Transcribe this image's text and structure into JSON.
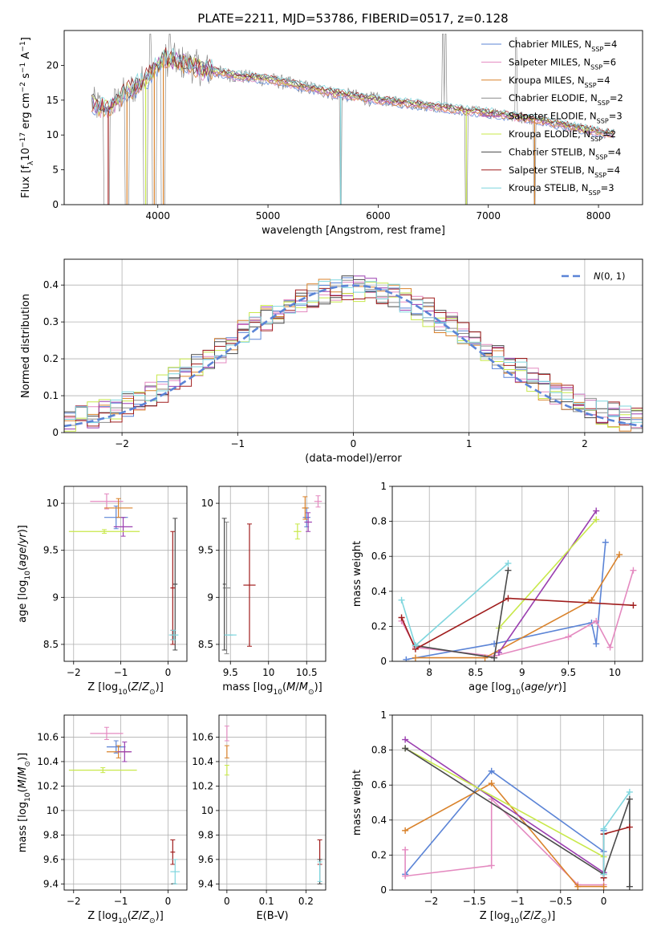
{
  "figure": {
    "title": "PLATE=2211, MJD=53786, FIBERID=0517, z=0.128"
  },
  "colors": {
    "Chabrier MILES": "#5b84d6",
    "Salpeter MILES": "#e48ac0",
    "Kroupa MILES": "#d9822b",
    "Chabrier ELODIE": "#8c8c8c",
    "Salpeter ELODIE": "#9b3fb0",
    "Kroupa ELODIE": "#c8e84a",
    "Chabrier STELIB": "#4a4a4a",
    "Salpeter STELIB": "#a01d1d",
    "Kroupa STELIB": "#7fd6de",
    "gauss": "#5b84d6"
  },
  "chart_data": [
    {
      "id": "spectrum",
      "type": "line",
      "xlabel": "wavelength [Angstrom, rest frame]",
      "ylabel": "Flux [f_λ10^-17 erg cm^-2 s^-1 A^-1]",
      "xlim": [
        3150,
        8400
      ],
      "ylim": [
        0,
        25
      ],
      "xticks": [
        4000,
        5000,
        6000,
        7000,
        8000
      ],
      "yticks": [
        0,
        5,
        10,
        15,
        20
      ],
      "grid": false,
      "legend_position": "top-right",
      "legend": [
        {
          "name": "Chabrier MILES",
          "nssp": "4"
        },
        {
          "name": "Salpeter MILES",
          "nssp": "6"
        },
        {
          "name": "Kroupa MILES",
          "nssp": "4"
        },
        {
          "name": "Chabrier ELODIE",
          "nssp": "2"
        },
        {
          "name": "Salpeter ELODIE",
          "nssp": "3"
        },
        {
          "name": "Kroupa ELODIE",
          "nssp": "2"
        },
        {
          "name": "Chabrier STELIB",
          "nssp": "4"
        },
        {
          "name": "Salpeter STELIB",
          "nssp": "4"
        },
        {
          "name": "Kroupa STELIB",
          "nssp": "3"
        }
      ],
      "continuum": [
        [
          3400,
          14.5
        ],
        [
          3550,
          13.5
        ],
        [
          3700,
          16
        ],
        [
          3900,
          18
        ],
        [
          4050,
          21
        ],
        [
          4200,
          20.5
        ],
        [
          4400,
          19.5
        ],
        [
          4700,
          18.5
        ],
        [
          5000,
          18
        ],
        [
          5300,
          17
        ],
        [
          5600,
          16
        ],
        [
          6000,
          15
        ],
        [
          6400,
          14.3
        ],
        [
          6800,
          13.5
        ],
        [
          7100,
          13
        ],
        [
          7500,
          12
        ],
        [
          7800,
          11
        ],
        [
          8150,
          10
        ]
      ],
      "dips": [
        [
          3550,
          3510,
          3560
        ],
        [
          3720,
          3700,
          3740
        ],
        [
          3890,
          3870,
          3910
        ],
        [
          3968,
          3950,
          3990
        ],
        [
          4050,
          4030,
          4070
        ],
        [
          5660,
          5650,
          5670
        ],
        [
          6800,
          6790,
          6810
        ],
        [
          7420,
          7410,
          7430
        ]
      ],
      "spikes": [
        [
          3930,
          24.5
        ],
        [
          4110,
          24.5
        ],
        [
          6590,
          24.5
        ],
        [
          6610,
          24.5
        ],
        [
          7250,
          24
        ]
      ]
    },
    {
      "id": "residuals",
      "type": "step",
      "xlabel": "(data-model)/error",
      "ylabel": "Normed distribution",
      "xlim": [
        -2.5,
        2.5
      ],
      "ylim": [
        0,
        0.47
      ],
      "xticks": [
        -2,
        -1,
        0,
        1,
        2
      ],
      "yticks": [
        0.0,
        0.1,
        0.2,
        0.3,
        0.4
      ],
      "grid": true,
      "bin_width": 0.1,
      "legend_position": "top-right",
      "legend_label": "N(0,1)",
      "series": [
        {
          "key": "Chabrier MILES",
          "shift": 0.0
        },
        {
          "key": "Salpeter MILES",
          "shift": 0.15
        },
        {
          "key": "Kroupa MILES",
          "shift": -0.1
        },
        {
          "key": "Chabrier ELODIE",
          "shift": 0.05
        },
        {
          "key": "Salpeter ELODIE",
          "shift": -0.05
        },
        {
          "key": "Kroupa ELODIE",
          "shift": -0.2
        },
        {
          "key": "Chabrier STELIB",
          "shift": 0.1
        },
        {
          "key": "Salpeter STELIB",
          "shift": 0.2
        },
        {
          "key": "Kroupa STELIB",
          "shift": 0.0
        }
      ]
    },
    {
      "id": "age_vs_Z",
      "type": "errorbar",
      "xlabel": "Z [log10(Z/Z⊙)]",
      "ylabel": "age  [log10(age/yr)]",
      "xlim": [
        -2.2,
        0.4
      ],
      "ylim": [
        8.32,
        10.18
      ],
      "xticks": [
        -2,
        -1,
        0
      ],
      "yticks": [
        8.5,
        9.0,
        9.5,
        10.0
      ],
      "grid": true,
      "points": [
        {
          "key": "Chabrier MILES",
          "x": -1.1,
          "xe": 0.25,
          "y": 9.85,
          "ye": 0.12
        },
        {
          "key": "Salpeter MILES",
          "x": -1.3,
          "xe": 0.35,
          "y": 10.02,
          "ye": 0.08
        },
        {
          "key": "Kroupa MILES",
          "x": -1.05,
          "xe": 0.3,
          "y": 9.95,
          "ye": 0.1
        },
        {
          "key": "Chabrier ELODIE",
          "x": 0.1,
          "xe": 0.05,
          "y": 8.6,
          "ye": 0.05
        },
        {
          "key": "Salpeter ELODIE",
          "x": -0.95,
          "xe": 0.2,
          "y": 9.75,
          "ye": 0.1
        },
        {
          "key": "Kroupa ELODIE",
          "x": -1.35,
          "xe": 0.75,
          "y": 9.7,
          "ye": 0.02
        },
        {
          "key": "Chabrier STELIB",
          "x": 0.15,
          "xe": 0.05,
          "y": 9.14,
          "ye": 0.7
        },
        {
          "key": "Salpeter STELIB",
          "x": 0.1,
          "xe": 0.05,
          "y": 9.1,
          "ye": 0.6
        },
        {
          "key": "Kroupa STELIB",
          "x": 0.12,
          "xe": 0.1,
          "y": 8.6,
          "ye": 0.05
        }
      ]
    },
    {
      "id": "age_vs_mass",
      "type": "errorbar",
      "xlabel": "mass [log10(M/M⊙)]",
      "ylabel": "",
      "xlim": [
        9.35,
        10.75
      ],
      "ylim": [
        8.32,
        10.18
      ],
      "xticks": [
        9.5,
        10.0,
        10.5
      ],
      "yticks": [
        8.5,
        9.0,
        9.5,
        10.0
      ],
      "grid": true,
      "points": [
        {
          "key": "Chabrier MILES",
          "x": 10.5,
          "xe": 0.05,
          "y": 9.85,
          "ye": 0.1
        },
        {
          "key": "Salpeter MILES",
          "x": 10.65,
          "xe": 0.05,
          "y": 10.02,
          "ye": 0.06
        },
        {
          "key": "Kroupa MILES",
          "x": 10.48,
          "xe": 0.04,
          "y": 9.95,
          "ye": 0.12
        },
        {
          "key": "Chabrier ELODIE",
          "x": 9.45,
          "xe": 0.05,
          "y": 9.1,
          "ye": 0.7
        },
        {
          "key": "Salpeter ELODIE",
          "x": 10.52,
          "xe": 0.05,
          "y": 9.8,
          "ye": 0.1
        },
        {
          "key": "Kroupa ELODIE",
          "x": 10.38,
          "xe": 0.05,
          "y": 9.7,
          "ye": 0.08
        },
        {
          "key": "Chabrier STELIB",
          "x": 9.42,
          "xe": 0.02,
          "y": 9.14,
          "ye": 0.7
        },
        {
          "key": "Salpeter STELIB",
          "x": 9.75,
          "xe": 0.08,
          "y": 9.13,
          "ye": 0.65
        },
        {
          "key": "Kroupa STELIB",
          "x": 9.5,
          "xe": 0.08,
          "y": 8.6,
          "ye": 0.0
        }
      ]
    },
    {
      "id": "weight_vs_age",
      "type": "line",
      "xlabel": "age  [log10(age/yr)]",
      "ylabel": "mass weight",
      "xlim": [
        7.6,
        10.3
      ],
      "ylim": [
        0,
        1
      ],
      "xticks": [
        8.0,
        8.5,
        9.0,
        9.5,
        10.0
      ],
      "yticks": [
        0.0,
        0.2,
        0.4,
        0.6,
        0.8,
        1.0
      ],
      "grid": true,
      "series": [
        {
          "key": "Chabrier MILES",
          "points": [
            [
              7.75,
              0.01
            ],
            [
              8.7,
              0.1
            ],
            [
              9.75,
              0.22
            ],
            [
              9.8,
              0.1
            ],
            [
              9.9,
              0.68
            ]
          ]
        },
        {
          "key": "Salpeter MILES",
          "points": [
            [
              7.7,
              0.23
            ],
            [
              7.85,
              0.08
            ],
            [
              8.7,
              0.03
            ],
            [
              9.5,
              0.14
            ],
            [
              9.8,
              0.23
            ],
            [
              9.95,
              0.08
            ],
            [
              10.2,
              0.52
            ]
          ]
        },
        {
          "key": "Kroupa MILES",
          "points": [
            [
              7.85,
              0.02
            ],
            [
              8.6,
              0.02
            ],
            [
              9.75,
              0.35
            ],
            [
              10.05,
              0.61
            ]
          ]
        },
        {
          "key": "Salpeter ELODIE",
          "points": [
            [
              8.75,
              0.05
            ],
            [
              9.8,
              0.86
            ]
          ]
        },
        {
          "key": "Kroupa ELODIE",
          "points": [
            [
              8.75,
              0.19
            ],
            [
              9.8,
              0.81
            ]
          ]
        },
        {
          "key": "Chabrier STELIB",
          "points": [
            [
              7.85,
              0.09
            ],
            [
              8.7,
              0.02
            ],
            [
              8.85,
              0.52
            ]
          ]
        },
        {
          "key": "Salpeter STELIB",
          "points": [
            [
              7.7,
              0.25
            ],
            [
              7.85,
              0.07
            ],
            [
              8.85,
              0.36
            ],
            [
              10.2,
              0.32
            ]
          ]
        },
        {
          "key": "Kroupa STELIB",
          "points": [
            [
              7.7,
              0.35
            ],
            [
              7.85,
              0.09
            ],
            [
              8.85,
              0.56
            ]
          ]
        }
      ]
    },
    {
      "id": "mass_vs_Z",
      "type": "errorbar",
      "xlabel": "Z [log10(Z/Z⊙)]",
      "ylabel": "mass [log10(M/M⊙)]",
      "xlim": [
        -2.2,
        0.4
      ],
      "ylim": [
        9.35,
        10.78
      ],
      "xticks": [
        -2,
        -1,
        0
      ],
      "yticks": [
        9.4,
        9.6,
        9.8,
        10.0,
        10.2,
        10.4,
        10.6
      ],
      "grid": true,
      "points": [
        {
          "key": "Chabrier MILES",
          "x": -1.1,
          "xe": 0.2,
          "y": 10.52,
          "ye": 0.05
        },
        {
          "key": "Salpeter MILES",
          "x": -1.3,
          "xe": 0.35,
          "y": 10.63,
          "ye": 0.05
        },
        {
          "key": "Kroupa MILES",
          "x": -1.05,
          "xe": 0.25,
          "y": 10.48,
          "ye": 0.05
        },
        {
          "key": "Salpeter ELODIE",
          "x": -0.92,
          "xe": 0.15,
          "y": 10.48,
          "ye": 0.08
        },
        {
          "key": "Kroupa ELODIE",
          "x": -1.38,
          "xe": 0.72,
          "y": 10.33,
          "ye": 0.02
        },
        {
          "key": "Chabrier STELIB",
          "x": 0.12,
          "xe": 0.05,
          "y": 9.4,
          "ye": 0.0
        },
        {
          "key": "Salpeter STELIB",
          "x": 0.1,
          "xe": 0.05,
          "y": 9.66,
          "ye": 0.1
        },
        {
          "key": "Kroupa STELIB",
          "x": 0.15,
          "xe": 0.1,
          "y": 9.5,
          "ye": 0.1
        }
      ]
    },
    {
      "id": "mass_vs_ebv",
      "type": "errorbar",
      "xlabel": "E(B-V)",
      "ylabel": "",
      "xlim": [
        -0.02,
        0.25
      ],
      "ylim": [
        9.35,
        10.78
      ],
      "xticks": [
        0.0,
        0.1,
        0.2
      ],
      "yticks": [
        9.4,
        9.6,
        9.8,
        10.0,
        10.2,
        10.4,
        10.6
      ],
      "grid": true,
      "points": [
        {
          "key": "Salpeter MILES",
          "x": 0.0,
          "xe": 0.0,
          "y": 10.63,
          "ye": 0.06
        },
        {
          "key": "Kroupa MILES",
          "x": 0.0,
          "xe": 0.0,
          "y": 10.48,
          "ye": 0.05
        },
        {
          "key": "Kroupa ELODIE",
          "x": 0.0,
          "xe": 0.0,
          "y": 10.33,
          "ye": 0.04
        },
        {
          "key": "Salpeter STELIB",
          "x": 0.235,
          "xe": 0.0,
          "y": 9.66,
          "ye": 0.1
        },
        {
          "key": "Chabrier STELIB",
          "x": 0.235,
          "xe": 0.0,
          "y": 9.5,
          "ye": 0.1
        },
        {
          "key": "Kroupa STELIB",
          "x": 0.235,
          "xe": 0.0,
          "y": 9.5,
          "ye": 0.08
        }
      ]
    },
    {
      "id": "weight_vs_Z",
      "type": "line",
      "xlabel": "Z [log10(Z/Z⊙)]",
      "ylabel": "mass weight",
      "xlim": [
        -2.45,
        0.45
      ],
      "ylim": [
        0,
        1
      ],
      "xticks": [
        -2.0,
        -1.5,
        -1.0,
        -0.5,
        0.0
      ],
      "yticks": [
        0.0,
        0.2,
        0.4,
        0.6,
        0.8,
        1.0
      ],
      "grid": true,
      "series": [
        {
          "key": "Chabrier MILES",
          "points": [
            [
              -2.3,
              0.09
            ],
            [
              -1.3,
              0.68
            ],
            [
              0.0,
              0.22
            ],
            [
              0.0,
              0.1
            ],
            [
              0.0,
              0.34
            ]
          ]
        },
        {
          "key": "Salpeter MILES",
          "points": [
            [
              -2.3,
              0.23
            ],
            [
              -2.3,
              0.08
            ],
            [
              -1.3,
              0.14
            ],
            [
              -1.3,
              0.52
            ],
            [
              -0.3,
              0.03
            ],
            [
              0.0,
              0.03
            ]
          ]
        },
        {
          "key": "Kroupa MILES",
          "points": [
            [
              -2.3,
              0.34
            ],
            [
              -1.3,
              0.61
            ],
            [
              -0.3,
              0.02
            ],
            [
              0.0,
              0.02
            ]
          ]
        },
        {
          "key": "Salpeter ELODIE",
          "points": [
            [
              -2.3,
              0.86
            ],
            [
              0.0,
              0.1
            ]
          ]
        },
        {
          "key": "Kroupa ELODIE",
          "points": [
            [
              -2.3,
              0.81
            ],
            [
              0.0,
              0.19
            ]
          ]
        },
        {
          "key": "Chabrier STELIB",
          "points": [
            [
              -2.3,
              0.81
            ],
            [
              0.0,
              0.09
            ],
            [
              0.3,
              0.52
            ],
            [
              0.3,
              0.02
            ]
          ]
        },
        {
          "key": "Salpeter STELIB",
          "points": [
            [
              0.0,
              0.07
            ],
            [
              0.0,
              0.32
            ],
            [
              0.3,
              0.36
            ]
          ]
        },
        {
          "key": "Kroupa STELIB",
          "points": [
            [
              0.0,
              0.09
            ],
            [
              0.0,
              0.35
            ],
            [
              0.3,
              0.56
            ]
          ]
        }
      ]
    }
  ]
}
